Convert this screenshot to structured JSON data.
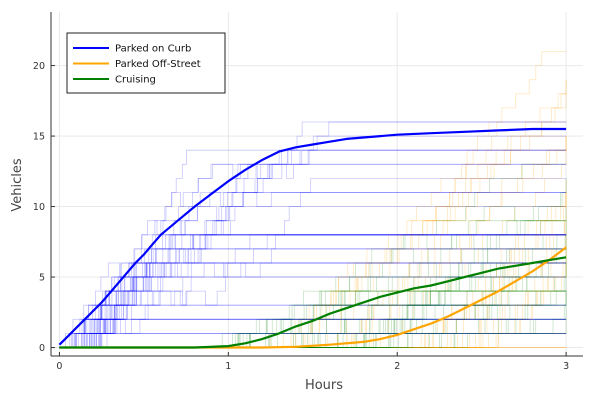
{
  "chart_data": {
    "type": "line",
    "title": "",
    "xlabel": "Hours",
    "ylabel": "Vehicles",
    "xlim": [
      -0.05,
      3.1
    ],
    "ylim": [
      -0.6,
      23.8
    ],
    "x_ticks": [
      0,
      1,
      2,
      3
    ],
    "y_ticks": [
      0,
      5,
      10,
      15,
      20
    ],
    "grid": true,
    "legend_position": "top-left",
    "legend": [
      {
        "name": "Parked on Curb",
        "color": "#0000ff"
      },
      {
        "name": "Parked Off-Street",
        "color": "#ffa500"
      },
      {
        "name": "Cruising",
        "color": "#008000"
      }
    ],
    "series": [
      {
        "name": "Parked on Curb",
        "color": "#0000ff",
        "x": [
          0,
          0.05,
          0.1,
          0.15,
          0.2,
          0.25,
          0.3,
          0.35,
          0.4,
          0.45,
          0.5,
          0.55,
          0.6,
          0.7,
          0.8,
          0.9,
          1.0,
          1.1,
          1.2,
          1.3,
          1.4,
          1.5,
          1.6,
          1.7,
          1.8,
          1.9,
          2.0,
          2.2,
          2.4,
          2.6,
          2.8,
          3.0
        ],
        "y": [
          0.2,
          0.8,
          1.4,
          2.0,
          2.6,
          3.2,
          3.9,
          4.6,
          5.3,
          6.0,
          6.6,
          7.3,
          8.0,
          9.0,
          10.0,
          10.9,
          11.8,
          12.6,
          13.3,
          13.9,
          14.2,
          14.4,
          14.6,
          14.8,
          14.9,
          15.0,
          15.1,
          15.2,
          15.3,
          15.4,
          15.5,
          15.5
        ]
      },
      {
        "name": "Parked Off-Street",
        "color": "#ffa500",
        "x": [
          0,
          1.2,
          1.4,
          1.6,
          1.8,
          1.9,
          2.0,
          2.1,
          2.2,
          2.3,
          2.4,
          2.5,
          2.6,
          2.7,
          2.8,
          2.9,
          3.0
        ],
        "y": [
          0,
          0,
          0.05,
          0.2,
          0.4,
          0.6,
          0.9,
          1.3,
          1.7,
          2.2,
          2.8,
          3.4,
          4.0,
          4.7,
          5.4,
          6.2,
          7.1
        ]
      },
      {
        "name": "Cruising",
        "color": "#008000",
        "x": [
          0,
          0.8,
          1.0,
          1.1,
          1.2,
          1.3,
          1.4,
          1.5,
          1.6,
          1.7,
          1.8,
          1.9,
          2.0,
          2.1,
          2.2,
          2.3,
          2.4,
          2.5,
          2.6,
          2.7,
          2.8,
          2.9,
          3.0
        ],
        "y": [
          0,
          0,
          0.1,
          0.3,
          0.6,
          1.0,
          1.5,
          1.9,
          2.4,
          2.8,
          3.2,
          3.6,
          3.9,
          4.2,
          4.4,
          4.7,
          5.0,
          5.3,
          5.6,
          5.8,
          6.0,
          6.2,
          6.4
        ]
      }
    ],
    "background_traces": {
      "Parked on Curb": {
        "count": 40,
        "color": "#0000ff",
        "max_level": 16
      },
      "Parked Off-Street": {
        "count": 40,
        "color": "#ffa500",
        "max_level": 23
      },
      "Cruising": {
        "count": 40,
        "color": "#008000",
        "max_level": 13
      }
    }
  }
}
